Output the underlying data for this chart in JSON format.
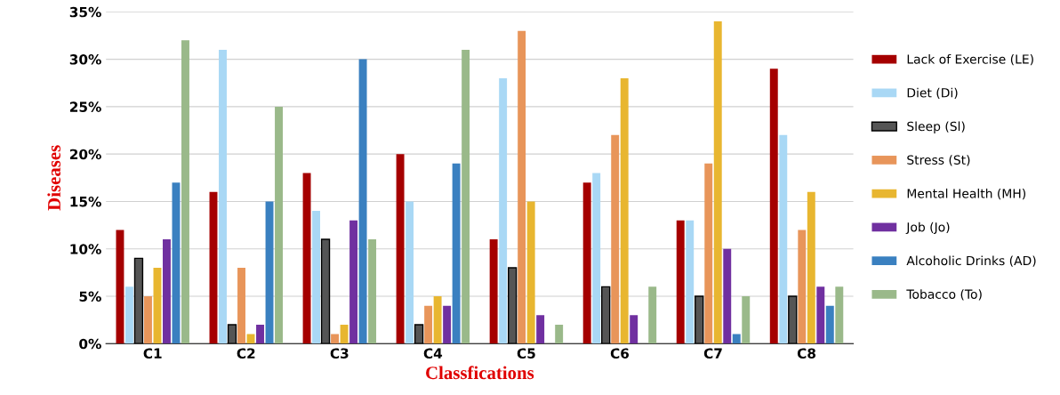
{
  "chart_data": {
    "type": "bar",
    "xlabel": "Classfications",
    "ylabel": "Diseases",
    "categories": [
      "C1",
      "C2",
      "C3",
      "C4",
      "C5",
      "C6",
      "C7",
      "C8"
    ],
    "series": [
      {
        "name": "Lack of Exercise (LE)",
        "color": "#a50000",
        "values": [
          12,
          16,
          18,
          20,
          11,
          17,
          13,
          29
        ]
      },
      {
        "name": "Diet (Di)",
        "color": "#a9d8f5",
        "values": [
          6,
          31,
          14,
          15,
          28,
          18,
          13,
          22
        ]
      },
      {
        "name": "Sleep (Sl)",
        "color": "#555555",
        "values": [
          9,
          2,
          11,
          2,
          8,
          6,
          5,
          5
        ]
      },
      {
        "name": "Stress (St)",
        "color": "#e8955a",
        "values": [
          5,
          8,
          1,
          4,
          33,
          22,
          19,
          12
        ]
      },
      {
        "name": "Mental Health (MH)",
        "color": "#e8b630",
        "values": [
          8,
          1,
          2,
          5,
          15,
          28,
          34,
          16
        ]
      },
      {
        "name": "Job (Jo)",
        "color": "#7030a0",
        "values": [
          11,
          2,
          13,
          4,
          3,
          3,
          10,
          6
        ]
      },
      {
        "name": "Alcoholic Drinks (AD)",
        "color": "#3a80c0",
        "values": [
          17,
          15,
          30,
          19,
          0,
          0,
          1,
          4
        ]
      },
      {
        "name": "Tobacco (To)",
        "color": "#9ab98a",
        "values": [
          32,
          25,
          11,
          31,
          2,
          6,
          5,
          6
        ]
      }
    ],
    "ylim": [
      0,
      35
    ],
    "yticks": [
      {
        "value": 0,
        "label": "0%"
      },
      {
        "value": 5,
        "label": "5%"
      },
      {
        "value": 10,
        "label": "10%"
      },
      {
        "value": 15,
        "label": "15%"
      },
      {
        "value": 20,
        "label": "20%"
      },
      {
        "value": 25,
        "label": "25%"
      },
      {
        "value": 30,
        "label": "30%"
      },
      {
        "value": 35,
        "label": "35%"
      }
    ],
    "grid": "y",
    "legend": "right"
  }
}
